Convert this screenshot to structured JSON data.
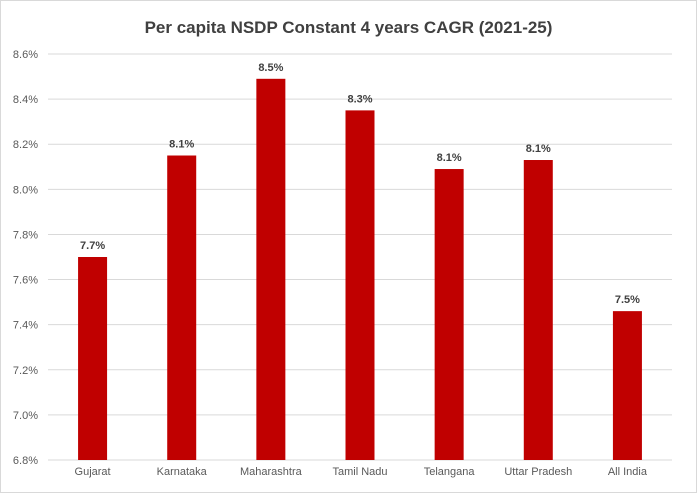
{
  "chart_data": {
    "type": "bar",
    "title": "Per capita NSDP Constant 4 years CAGR (2021-25)",
    "xlabel": "",
    "ylabel": "",
    "categories": [
      "Gujarat",
      "Karnataka",
      "Maharashtra",
      "Tamil Nadu",
      "Telangana",
      "Uttar Pradesh",
      "All India"
    ],
    "values": [
      7.7,
      8.15,
      8.49,
      8.35,
      8.09,
      8.13,
      7.46
    ],
    "data_labels": [
      "7.7%",
      "8.1%",
      "8.5%",
      "8.3%",
      "8.1%",
      "8.1%",
      "7.5%"
    ],
    "ylim": [
      6.8,
      8.6
    ],
    "y_ticks": [
      6.8,
      7.0,
      7.2,
      7.4,
      7.6,
      7.8,
      8.0,
      8.2,
      8.4,
      8.6
    ],
    "y_tick_labels": [
      "6.8%",
      "7.0%",
      "7.2%",
      "7.4%",
      "7.6%",
      "7.8%",
      "8.0%",
      "8.2%",
      "8.4%",
      "8.6%"
    ],
    "grid": true,
    "legend": "none"
  },
  "colors": {
    "bar": "#c00000",
    "grid": "#d9d9d9",
    "axis_text": "#595959",
    "label_text": "#404040"
  }
}
